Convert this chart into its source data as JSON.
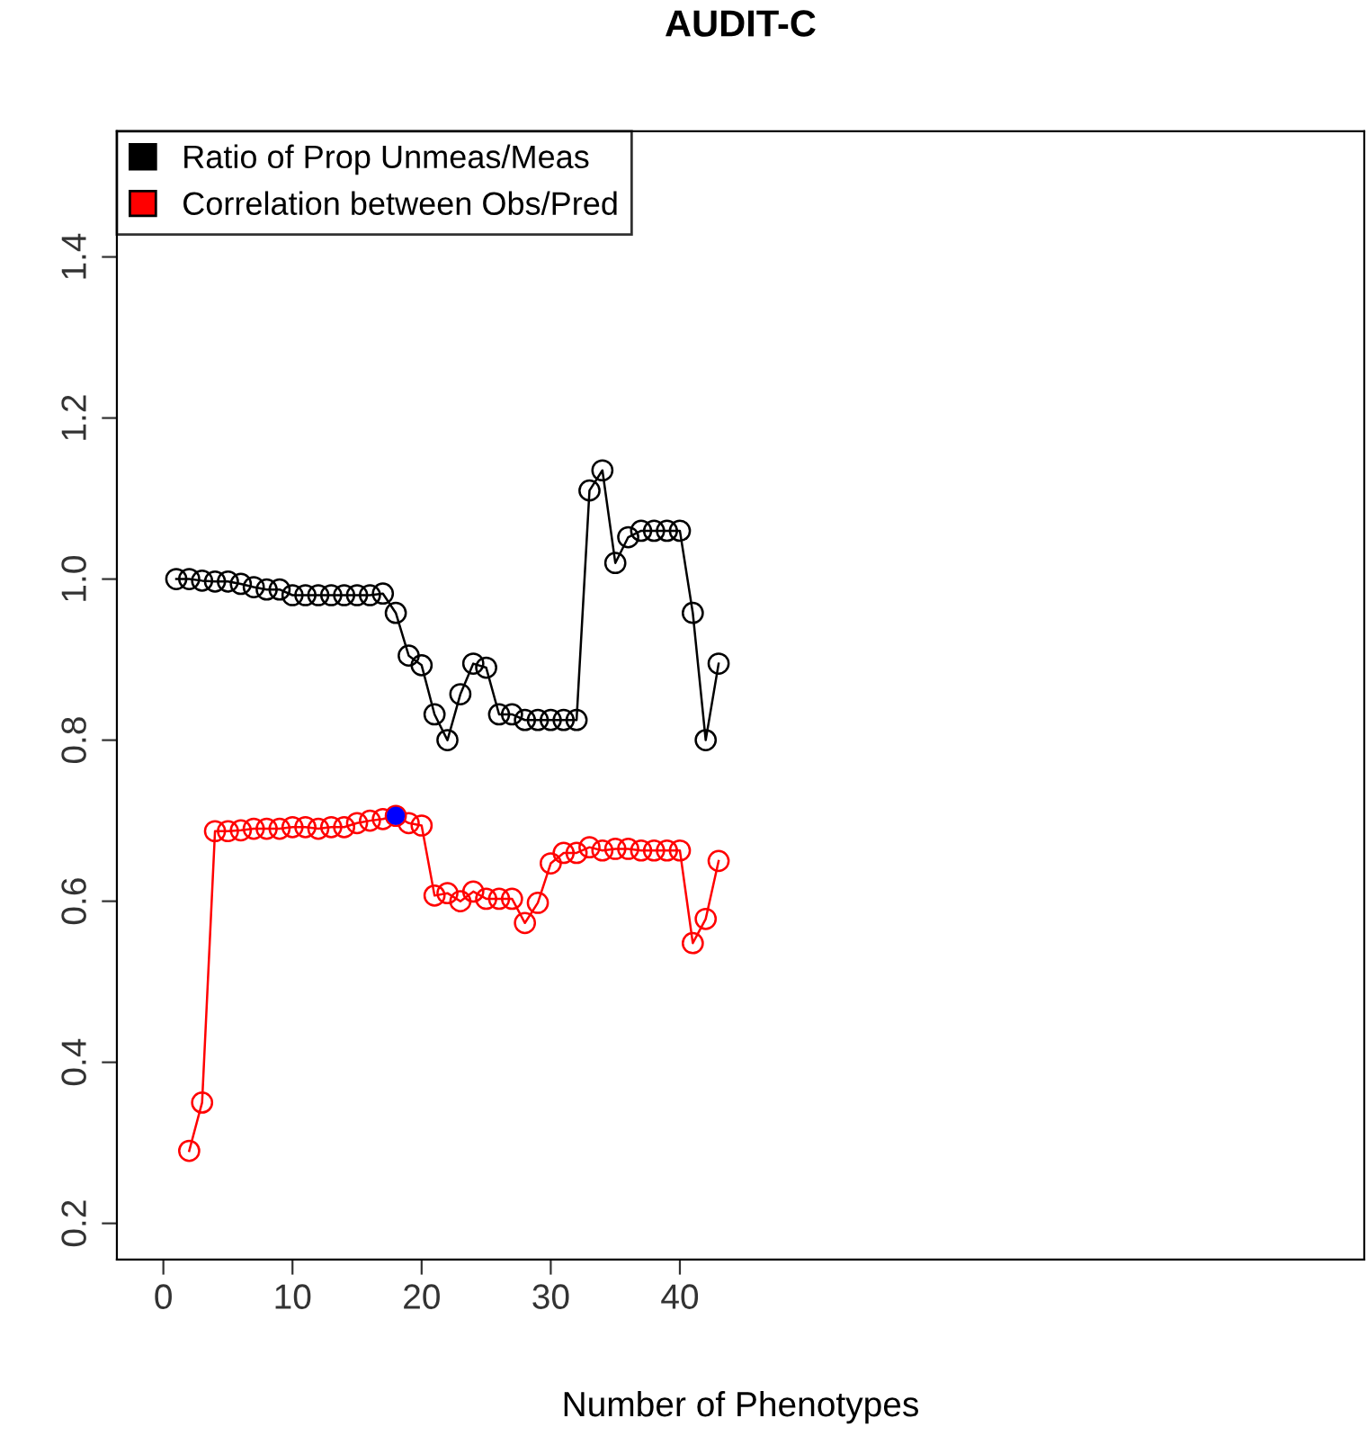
{
  "chart_data": {
    "type": "line",
    "title": "AUDIT-C",
    "xlabel": "Number of Phenotypes",
    "x": [
      1,
      2,
      3,
      4,
      5,
      6,
      7,
      8,
      9,
      10,
      11,
      12,
      13,
      14,
      15,
      16,
      17,
      18,
      19,
      20,
      21,
      22,
      23,
      24,
      25,
      26,
      27,
      28,
      29,
      30,
      31,
      32,
      33,
      34,
      35,
      36,
      37,
      38,
      39,
      40,
      41,
      42,
      43
    ],
    "series": [
      {
        "name": "Ratio of Prop Unmeas/Meas",
        "color": "#000000",
        "values": [
          1.0,
          1.0,
          0.998,
          0.997,
          0.997,
          0.994,
          0.99,
          0.987,
          0.987,
          0.98,
          0.98,
          0.98,
          0.98,
          0.98,
          0.98,
          0.98,
          0.982,
          0.958,
          0.905,
          0.893,
          0.832,
          0.8,
          0.857,
          0.895,
          0.89,
          0.832,
          0.832,
          0.825,
          0.825,
          0.825,
          0.825,
          0.825,
          1.11,
          1.135,
          1.02,
          1.052,
          1.06,
          1.06,
          1.06,
          1.06,
          0.958,
          0.8,
          0.895
        ]
      },
      {
        "name": "Correlation between Obs/Pred",
        "color": "#ff0000",
        "values": [
          null,
          0.29,
          0.35,
          0.687,
          0.687,
          0.688,
          0.69,
          0.69,
          0.69,
          0.692,
          0.692,
          0.69,
          0.692,
          0.692,
          0.697,
          0.7,
          0.702,
          0.706,
          0.697,
          0.694,
          0.607,
          0.61,
          0.6,
          0.612,
          0.603,
          0.603,
          0.603,
          0.573,
          0.598,
          0.647,
          0.66,
          0.66,
          0.667,
          0.663,
          0.665,
          0.665,
          0.663,
          0.663,
          0.663,
          0.663,
          0.548,
          0.578,
          0.65
        ]
      },
      {
        "type": "scatter",
        "color": "#0000ff",
        "x": [
          18
        ],
        "values": [
          0.706
        ]
      }
    ],
    "marker": "circle",
    "line_style": "solid",
    "xlim": [
      -3.6,
      93
    ],
    "xticks": [
      0,
      10,
      20,
      30,
      40
    ],
    "ylim": [
      0.155,
      1.556
    ],
    "yticks": [
      0.2,
      0.4,
      0.6,
      0.8,
      {
        "value": 1,
        "label": "1.0"
      },
      1.2,
      1.4
    ],
    "grid": false,
    "legend": "top left"
  }
}
